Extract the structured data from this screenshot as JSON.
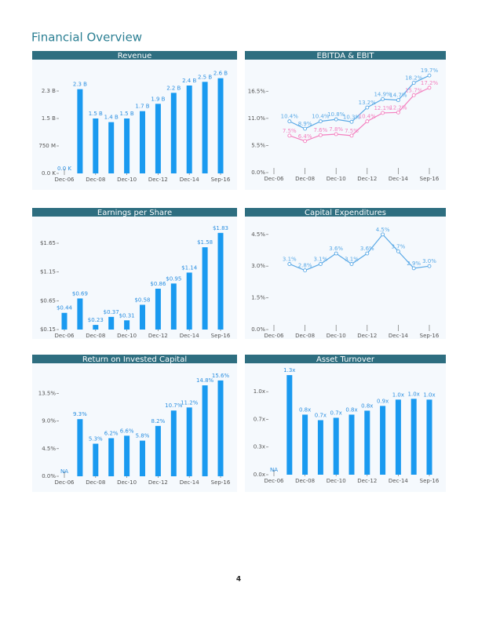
{
  "title": "Financial Overview",
  "page_number": "4",
  "chart_data": [
    {
      "type": "bar",
      "title": "Revenue",
      "categories": [
        "Dec-06",
        null,
        "Dec-08",
        null,
        "Dec-10",
        null,
        "Dec-12",
        null,
        "Dec-14",
        null,
        "Sep-16"
      ],
      "values": [
        0,
        2300000000,
        1500000000,
        1400000000,
        1500000000,
        1700000000,
        1900000000,
        2200000000,
        2400000000,
        2500000000,
        2600000000
      ],
      "value_labels": [
        "0.0 K",
        "2.3 B",
        "1.5 B",
        "1.4 B",
        "1.5 B",
        "1.7 B",
        "1.9 B",
        "2.2 B",
        "2.4 B",
        "2.5 B",
        "2.6 B"
      ],
      "color": "#1a9af0",
      "ylim": [
        0,
        2850000000
      ],
      "yticks": [
        {
          "value": 0,
          "label": "0.0 K"
        },
        {
          "value": 750000000,
          "label": "750 M"
        },
        {
          "value": 1500000000,
          "label": "1.5 B"
        },
        {
          "value": 2250000000,
          "label": "2.3 B"
        }
      ]
    },
    {
      "type": "line",
      "title": "EBITDA & EBIT",
      "categories": [
        "Dec-06",
        null,
        "Dec-08",
        null,
        "Dec-10",
        null,
        "Dec-12",
        null,
        "Dec-14",
        null,
        "Sep-16"
      ],
      "series": [
        {
          "color": "#5aa9e6",
          "values": [
            null,
            10.4,
            8.9,
            10.4,
            10.8,
            10.3,
            13.2,
            14.9,
            14.7,
            18.2,
            19.7
          ],
          "value_labels": [
            null,
            "10.4%",
            "8.9%",
            "10.4%",
            "10.8%",
            "10.3%",
            "13.2%",
            "14.9%",
            "14.7%",
            "18.2%",
            "19.7%"
          ]
        },
        {
          "color": "#f47fbf",
          "values": [
            null,
            7.5,
            6.4,
            7.6,
            7.8,
            7.5,
            10.4,
            12.1,
            12.2,
            15.7,
            17.2
          ],
          "value_labels": [
            null,
            "7.5%",
            "6.4%",
            "7.6%",
            "7.8%",
            "7.5%",
            "10.4%",
            "12.1%",
            "12.2%",
            "15.7%",
            "17.2%"
          ]
        }
      ],
      "ylim": [
        0,
        21
      ],
      "yticks": [
        {
          "value": 0,
          "label": "0.0%"
        },
        {
          "value": 5.5,
          "label": "5.5%"
        },
        {
          "value": 11,
          "label": "11.0%"
        },
        {
          "value": 16.5,
          "label": "16.5%"
        }
      ]
    },
    {
      "type": "bar",
      "title": "Earnings per Share",
      "categories": [
        "Dec-06",
        null,
        "Dec-08",
        null,
        "Dec-10",
        null,
        "Dec-12",
        null,
        "Dec-14",
        null,
        "Sep-16"
      ],
      "values": [
        0.44,
        0.69,
        0.23,
        0.37,
        0.31,
        0.58,
        0.86,
        0.95,
        1.14,
        1.58,
        1.83
      ],
      "value_labels": [
        "$0.44",
        "$0.69",
        "$0.23",
        "$0.37",
        "$0.31",
        "$0.58",
        "$0.86",
        "$0.95",
        "$1.14",
        "$1.58",
        "$1.83"
      ],
      "color": "#1a9af0",
      "ylim": [
        0.15,
        1.95
      ],
      "yticks": [
        {
          "value": 0.15,
          "label": "$0.15"
        },
        {
          "value": 0.65,
          "label": "$0.65"
        },
        {
          "value": 1.15,
          "label": "$1.15"
        },
        {
          "value": 1.65,
          "label": "$1.65"
        }
      ]
    },
    {
      "type": "line",
      "title": "Capital Expenditures",
      "categories": [
        "Dec-06",
        null,
        "Dec-08",
        null,
        "Dec-10",
        null,
        "Dec-12",
        null,
        "Dec-14",
        null,
        "Sep-16"
      ],
      "series": [
        {
          "color": "#5aa9e6",
          "values": [
            null,
            3.1,
            2.8,
            3.1,
            3.6,
            3.1,
            3.6,
            4.5,
            3.7,
            2.9,
            3.0
          ],
          "value_labels": [
            null,
            "3.1%",
            "2.8%",
            "3.1%",
            "3.6%",
            "3.1%",
            "3.6%",
            "4.5%",
            "3.7%",
            "2.9%",
            "3.0%"
          ]
        }
      ],
      "ylim": [
        0,
        4.9
      ],
      "yticks": [
        {
          "value": 0,
          "label": "0.0%"
        },
        {
          "value": 1.5,
          "label": "1.5%"
        },
        {
          "value": 3,
          "label": "3.0%"
        },
        {
          "value": 4.5,
          "label": "4.5%"
        }
      ]
    },
    {
      "type": "bar",
      "title": "Return on Invested Capital",
      "categories": [
        "Dec-06",
        null,
        "Dec-08",
        null,
        "Dec-10",
        null,
        "Dec-12",
        null,
        "Dec-14",
        null,
        "Sep-16"
      ],
      "values": [
        null,
        9.3,
        5.3,
        6.2,
        6.6,
        5.8,
        8.2,
        10.7,
        11.2,
        14.8,
        15.6
      ],
      "value_labels": [
        "NA",
        "9.3%",
        "5.3%",
        "6.2%",
        "6.6%",
        "5.8%",
        "8.2%",
        "10.7%",
        "11.2%",
        "14.8%",
        "15.6%"
      ],
      "color": "#1a9af0",
      "ylim": [
        0,
        17.5
      ],
      "yticks": [
        {
          "value": 0,
          "label": "0.0%"
        },
        {
          "value": 4.5,
          "label": "4.5%"
        },
        {
          "value": 9,
          "label": "9.0%"
        },
        {
          "value": 13.5,
          "label": "13.5%"
        }
      ]
    },
    {
      "type": "bar",
      "title": "Asset Turnover",
      "categories": [
        "Dec-06",
        null,
        "Dec-08",
        null,
        "Dec-10",
        null,
        "Dec-12",
        null,
        "Dec-14",
        null,
        "Sep-16"
      ],
      "values": [
        null,
        1.26,
        0.76,
        0.69,
        0.72,
        0.76,
        0.81,
        0.87,
        0.95,
        0.96,
        0.95
      ],
      "value_labels": [
        "NA",
        "1.3x",
        "0.8x",
        "0.7x",
        "0.7x",
        "0.8x",
        "0.8x",
        "0.9x",
        "1.0x",
        "1.0x",
        "1.0x"
      ],
      "color": "#1a9af0",
      "ylim": [
        0,
        1.36
      ],
      "yticks": [
        {
          "value": 0,
          "label": "0.0x"
        },
        {
          "value": 0.35,
          "label": "0.3x"
        },
        {
          "value": 0.7,
          "label": "0.7x"
        },
        {
          "value": 1.05,
          "label": "1.0x"
        }
      ]
    }
  ]
}
